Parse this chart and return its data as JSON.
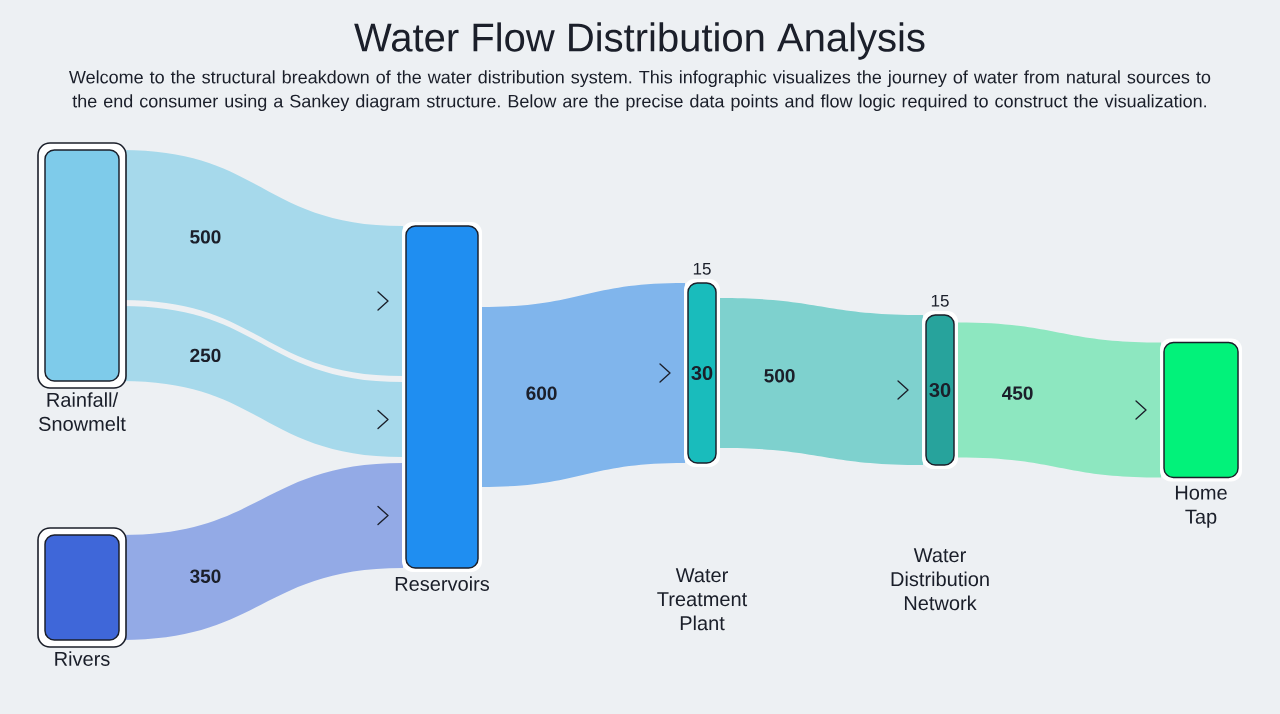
{
  "chart_data": {
    "type": "other",
    "title": "Water Flow Distribution Analysis",
    "subtitle": "Welcome to the structural breakdown of the water distribution system. This infographic visualizes the journey of water from natural sources to the end consumer using a Sankey diagram structure. Below are the precise data points and flow logic required to construct the visualization.",
    "categories": [
      "Rainfall/ Snowmelt",
      "Rivers",
      "Reservoirs",
      "Water Treatment Plant",
      "Water Distribution Network",
      "Home Tap"
    ],
    "colors": [
      "#7ecbea",
      "#3f67d9",
      "#1f8ef1",
      "#19bcbc",
      "#27a39c",
      "#02f27a"
    ],
    "values": [
      null,
      null,
      null,
      30,
      30,
      null
    ],
    "series": [
      {
        "color": "#a6d9eb",
        "values": [
          500,
          null,
          null,
          null,
          null,
          null
        ]
      },
      {
        "color": "#a6d9eb",
        "values": [
          250,
          null,
          null,
          null,
          null,
          null
        ]
      },
      {
        "color": "#93aae6",
        "values": [
          null,
          350,
          null,
          null,
          null,
          null
        ]
      },
      {
        "color": "#80b5ec",
        "values": [
          null,
          null,
          600,
          null,
          null,
          null
        ]
      },
      {
        "color": "#7ed1ce",
        "values": [
          null,
          null,
          null,
          500,
          null,
          null
        ]
      },
      {
        "color": "#8de7c0",
        "values": [
          null,
          null,
          null,
          null,
          450,
          null
        ]
      }
    ],
    "annotations": [
      "15",
      "15"
    ],
    "data_labels": true
  }
}
